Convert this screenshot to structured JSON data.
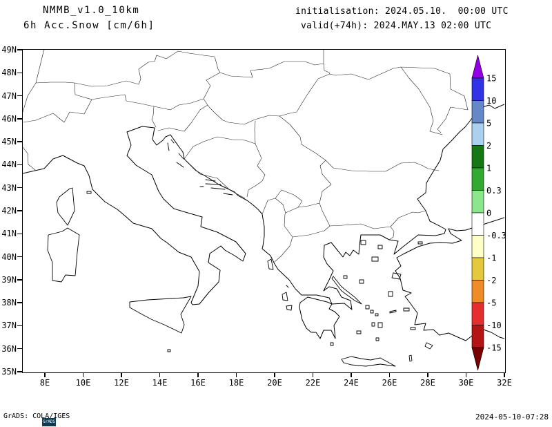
{
  "header": {
    "model": "NMMB_v1.0_10km",
    "field": "6h Acc.Snow [cm/6h]",
    "init": "initialisation: 2024.05.10.  00:00 UTC",
    "valid": "valid(+74h): 2024.MAY.13 02:00 UTC"
  },
  "map_axes": {
    "lat_ticks": [
      "49N",
      "48N",
      "47N",
      "46N",
      "45N",
      "44N",
      "43N",
      "42N",
      "41N",
      "40N",
      "39N",
      "38N",
      "37N",
      "36N",
      "35N"
    ],
    "lon_ticks": [
      "8E",
      "10E",
      "12E",
      "14E",
      "16E",
      "18E",
      "20E",
      "22E",
      "24E",
      "26E",
      "28E",
      "30E",
      "32E"
    ]
  },
  "colorbar": {
    "labels": [
      "15",
      "10",
      "5",
      "2",
      "1",
      "0.3",
      "0",
      "-0.3",
      "-1",
      "-2",
      "-5",
      "-10",
      "-15"
    ],
    "arrow_top_color": "#9100e6",
    "arrow_bottom_color": "#780000",
    "segment_colors": [
      "#3232e6",
      "#6488c8",
      "#aad2f0",
      "#147814",
      "#32aa32",
      "#8ce68c",
      "#ffffff",
      "#ffffc8",
      "#e6c83c",
      "#f08c28",
      "#e62e2e",
      "#b41414"
    ]
  },
  "footer": {
    "credit": "GrADS: COLA/IGES",
    "logo_text": "GrADS",
    "timestamp": "2024-05-10-07:28"
  },
  "chart_data": {
    "type": "map",
    "title": "6h Acc.Snow [cm/6h]",
    "model": "NMMB_v1.0_10km",
    "initialisation": "2024.05.10. 00:00 UTC",
    "valid_time": "2024.MAY.13 02:00 UTC",
    "lead_hours": 74,
    "lon_ticks_deg_e": [
      8,
      10,
      12,
      14,
      16,
      18,
      20,
      22,
      24,
      26,
      28,
      30,
      32
    ],
    "lat_ticks_deg_n": [
      49,
      48,
      47,
      46,
      45,
      44,
      43,
      42,
      41,
      40,
      39,
      38,
      37,
      36,
      35
    ],
    "colorbar_levels_cm": [
      15,
      10,
      5,
      2,
      1,
      0.3,
      0,
      -0.3,
      -1,
      -2,
      -5,
      -10,
      -15
    ],
    "visible_field": "blank (no shaded snow-accumulation values visible on the map)"
  }
}
